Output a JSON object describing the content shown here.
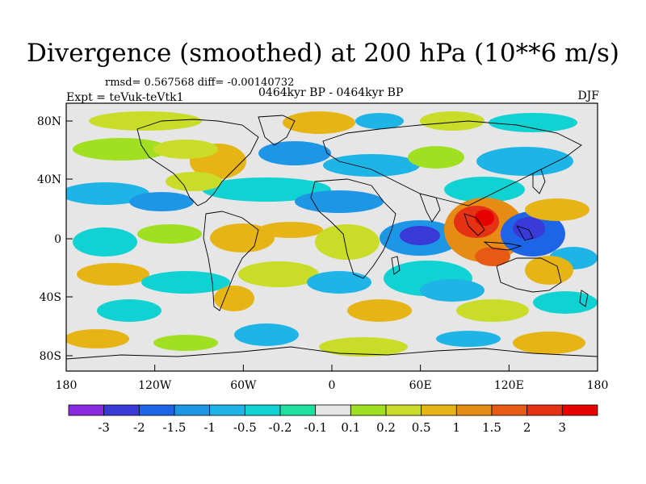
{
  "title": "Divergence (smoothed) at 200 hPa (10**6 m/s)",
  "stats": "rmsd= 0.567568 diff= -0.00140732",
  "period": "0464kyr BP - 0464kyr BP",
  "experiment": "Expt = teVuk-teVtk1",
  "season": "DJF",
  "y_ticks": [
    "80N",
    "40N",
    "0",
    "40S",
    "80S"
  ],
  "x_ticks": [
    "180",
    "120W",
    "60W",
    "0",
    "60E",
    "120E",
    "180"
  ],
  "colorbar": {
    "labels": [
      "-3",
      "-2",
      "-1.5",
      "-1",
      "-0.5",
      "-0.2",
      "-0.1",
      "0.1",
      "0.2",
      "0.5",
      "1",
      "1.5",
      "2",
      "3"
    ],
    "colors": [
      "#8a2be2",
      "#3a3ad8",
      "#1e64e6",
      "#1e96e6",
      "#1eb4e6",
      "#10d2d2",
      "#20e0a0",
      "#e6e6e6",
      "#a0e020",
      "#c8dc28",
      "#e6b414",
      "#e68c14",
      "#e65a14",
      "#e63214",
      "#e60000"
    ]
  },
  "palette": {
    "ocean_bg": "#e6e6e6",
    "coast": "#000000"
  }
}
